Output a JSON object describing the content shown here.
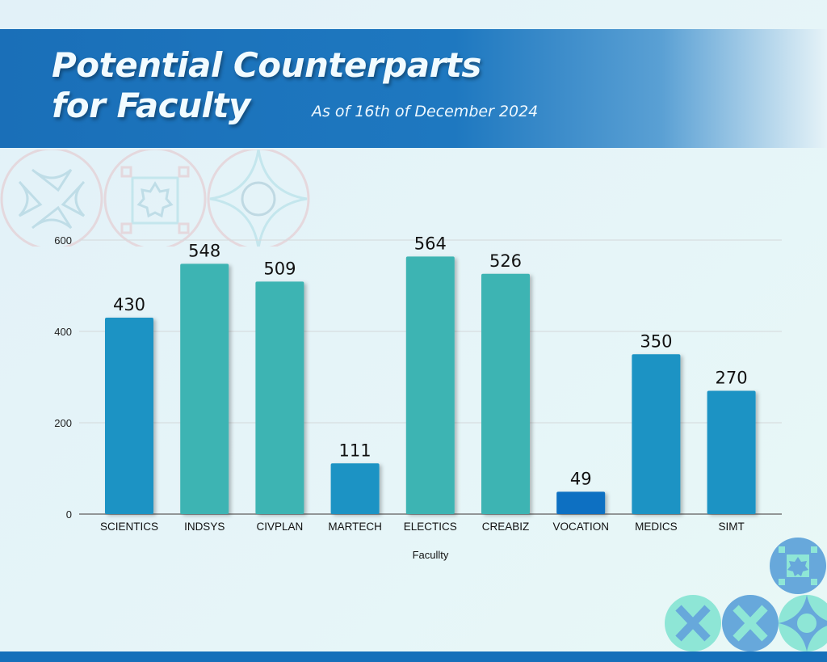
{
  "header": {
    "title_line1": "Potential Counterparts",
    "title_line2": "for Faculty",
    "subtitle": "As of 16th of December 2024"
  },
  "colors": {
    "blue_bar": "#1b93c4",
    "teal_bar": "#3db4b3",
    "dark_blue_bar": "#0a6fc2",
    "header_blue": "#1a6fb8"
  },
  "chart_data": {
    "type": "bar",
    "title": "Potential Counterparts for Faculty",
    "subtitle": "As of 16th of December 2024",
    "xlabel": "Facullty",
    "ylabel": "",
    "categories": [
      "SCIENTICS",
      "INDSYS",
      "CIVPLAN",
      "MARTECH",
      "ELECTICS",
      "CREABIZ",
      "VOCATION",
      "MEDICS",
      "SIMT"
    ],
    "values": [
      430,
      548,
      509,
      111,
      564,
      526,
      49,
      350,
      270
    ],
    "bar_colors": [
      "blue",
      "teal",
      "teal",
      "blue",
      "teal",
      "teal",
      "dark_blue",
      "blue",
      "blue"
    ],
    "data_labels": [
      "430",
      "548",
      "509",
      "111",
      "564",
      "526",
      "49",
      "350",
      "270"
    ],
    "ylim": [
      0,
      600
    ],
    "yticks": [
      0,
      200,
      400,
      600
    ],
    "ytick_labels": [
      "0",
      "200",
      "400",
      "600"
    ],
    "grid": true,
    "legend": "none"
  }
}
